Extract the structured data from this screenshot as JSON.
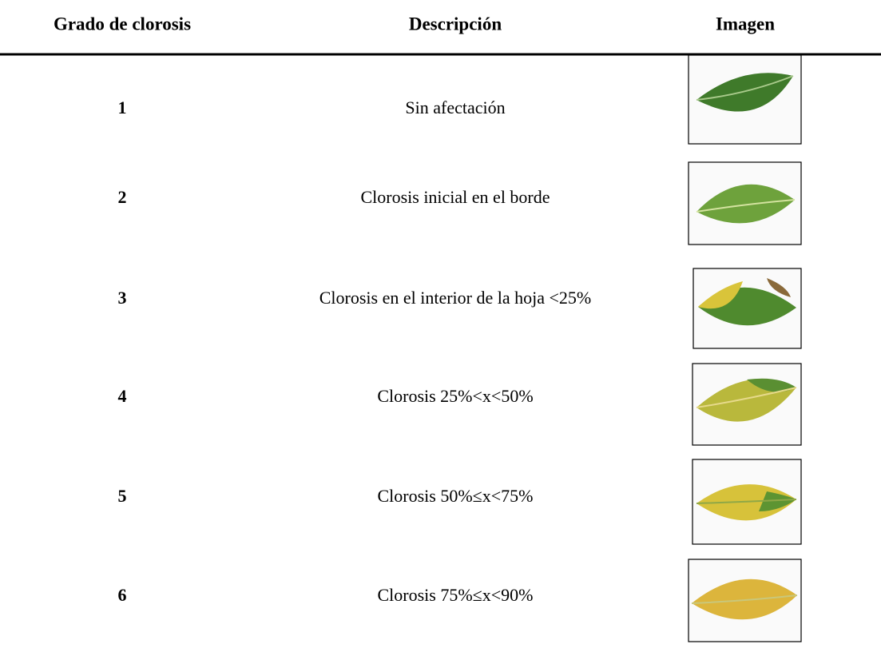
{
  "table": {
    "header": [
      "Grado de clorosis",
      "Descripción",
      "Imagen"
    ],
    "rows": [
      [
        "1",
        "Sin afectación"
      ],
      [
        "2",
        "Clorosis inicial en el borde"
      ],
      [
        "3",
        "Clorosis en el interior de la hoja <25%"
      ],
      [
        "4",
        "Clorosis 25%<x<50%"
      ],
      [
        "5",
        "Clorosis 50%≤x<75%"
      ],
      [
        "6",
        "Clorosis 75%≤x<90%"
      ]
    ]
  }
}
